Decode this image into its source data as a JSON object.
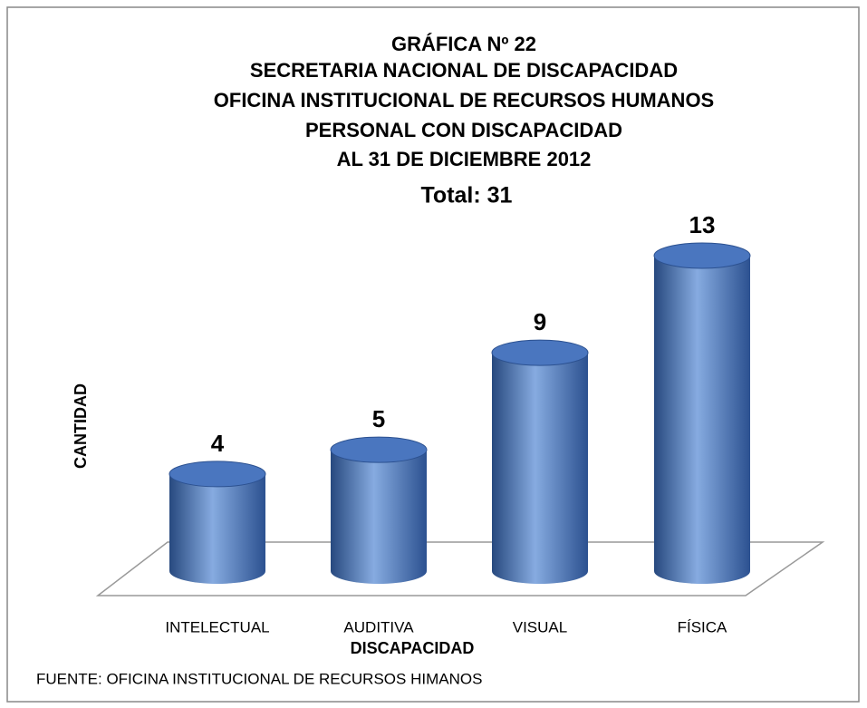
{
  "chart_data": {
    "type": "bar",
    "title": [
      "GRÁFICA Nº 22",
      "SECRETARIA NACIONAL  DE DISCAPACIDAD",
      "OFICINA INSTITUCIONAL  DE RECURSOS  HUMANOS",
      "PERSONAL CON DISCAPACIDAD",
      "AL 31 DE DICIEMBRE 2012"
    ],
    "subtitle": "Total: 31",
    "xlabel": "DISCAPACIDAD",
    "ylabel": "CANTIDAD",
    "source": "FUENTE: OFICINA INSTITUCIONAL DE RECURSOS HIMANOS",
    "categories": [
      "INTELECTUAL",
      "AUDITIVA",
      "VISUAL",
      "FÍSICA"
    ],
    "values": [
      4,
      5,
      9,
      13
    ],
    "color": "#4a76bf"
  }
}
